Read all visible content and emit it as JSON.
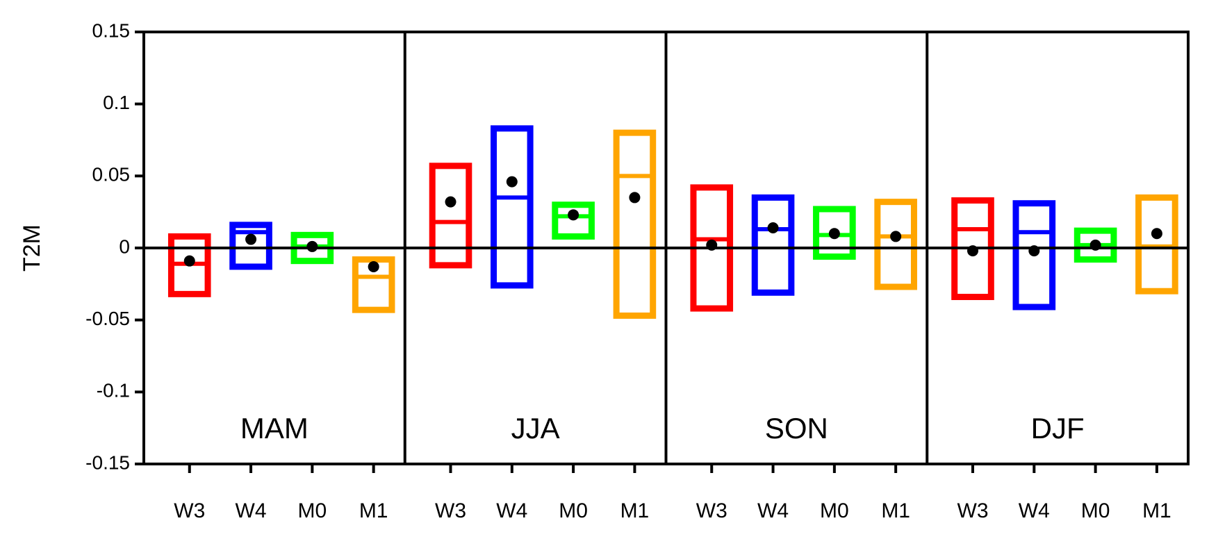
{
  "chart_data": {
    "type": "box",
    "ylabel": "T2M",
    "ylim": [
      -0.15,
      0.15
    ],
    "yticks": [
      -0.15,
      -0.1,
      -0.05,
      0,
      0.05,
      0.1,
      0.15
    ],
    "groups": [
      {
        "name": "MAM",
        "categories": [
          "W3",
          "W4",
          "M0",
          "M1"
        ],
        "boxes": [
          {
            "color": "#ff0000",
            "low": -0.032,
            "median": -0.011,
            "high": 0.008,
            "mean": -0.009
          },
          {
            "color": "#0000ff",
            "low": -0.013,
            "median": 0.011,
            "high": 0.016,
            "mean": 0.006
          },
          {
            "color": "#00ff00",
            "low": -0.009,
            "median": 0.001,
            "high": 0.009,
            "mean": 0.001
          },
          {
            "color": "#ffa500",
            "low": -0.043,
            "median": -0.02,
            "high": -0.008,
            "mean": -0.013
          }
        ]
      },
      {
        "name": "JJA",
        "categories": [
          "W3",
          "W4",
          "M0",
          "M1"
        ],
        "boxes": [
          {
            "color": "#ff0000",
            "low": -0.012,
            "median": 0.018,
            "high": 0.057,
            "mean": 0.032
          },
          {
            "color": "#0000ff",
            "low": -0.026,
            "median": 0.035,
            "high": 0.083,
            "mean": 0.046
          },
          {
            "color": "#00ff00",
            "low": 0.008,
            "median": 0.022,
            "high": 0.03,
            "mean": 0.023
          },
          {
            "color": "#ffa500",
            "low": -0.047,
            "median": 0.05,
            "high": 0.08,
            "mean": 0.035
          }
        ]
      },
      {
        "name": "SON",
        "categories": [
          "W3",
          "W4",
          "M0",
          "M1"
        ],
        "boxes": [
          {
            "color": "#ff0000",
            "low": -0.042,
            "median": 0.006,
            "high": 0.042,
            "mean": 0.002
          },
          {
            "color": "#0000ff",
            "low": -0.031,
            "median": 0.013,
            "high": 0.035,
            "mean": 0.014
          },
          {
            "color": "#00ff00",
            "low": -0.006,
            "median": 0.009,
            "high": 0.027,
            "mean": 0.01
          },
          {
            "color": "#ffa500",
            "low": -0.027,
            "median": 0.008,
            "high": 0.032,
            "mean": 0.008
          }
        ]
      },
      {
        "name": "DJF",
        "categories": [
          "W3",
          "W4",
          "M0",
          "M1"
        ],
        "boxes": [
          {
            "color": "#ff0000",
            "low": -0.034,
            "median": 0.013,
            "high": 0.033,
            "mean": -0.002
          },
          {
            "color": "#0000ff",
            "low": -0.041,
            "median": 0.011,
            "high": 0.031,
            "mean": -0.002
          },
          {
            "color": "#00ff00",
            "low": -0.008,
            "median": 0.002,
            "high": 0.012,
            "mean": 0.002
          },
          {
            "color": "#ffa500",
            "low": -0.03,
            "median": 0.001,
            "high": 0.035,
            "mean": 0.01
          }
        ]
      }
    ]
  }
}
